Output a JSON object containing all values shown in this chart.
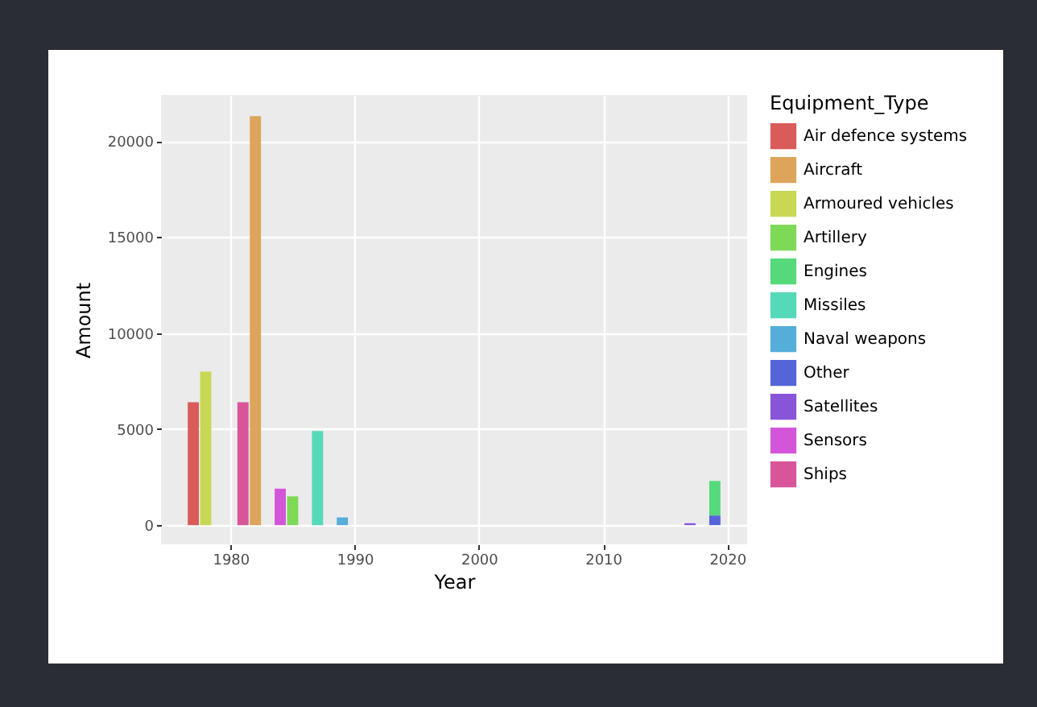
{
  "chart_data": {
    "type": "bar",
    "xlabel": "Year",
    "ylabel": "Amount",
    "legend_title": "Equipment_Type",
    "stacked": true,
    "grid": true,
    "legend": "right",
    "x": [
      1977,
      1978,
      1981,
      1982,
      1984,
      1985,
      1987,
      1989,
      2017,
      2019
    ],
    "xlim": [
      1974.4,
      2021.6
    ],
    "xticks": [
      1980,
      1990,
      2000,
      2010,
      2020
    ],
    "ylim": [
      -1000,
      22400
    ],
    "yticks": [
      0,
      5000,
      10000,
      15000,
      20000
    ],
    "series": [
      {
        "name": "Air defence systems",
        "color": "#d95c5a",
        "values": [
          6400,
          null,
          null,
          null,
          null,
          null,
          null,
          null,
          null,
          null
        ]
      },
      {
        "name": "Aircraft",
        "color": "#dca55a",
        "values": [
          null,
          null,
          null,
          21300,
          null,
          null,
          null,
          null,
          null,
          null
        ]
      },
      {
        "name": "Armoured vehicles",
        "color": "#c8d855",
        "values": [
          null,
          8000,
          null,
          null,
          null,
          null,
          null,
          null,
          null,
          null
        ]
      },
      {
        "name": "Artillery",
        "color": "#7ed957",
        "values": [
          null,
          null,
          null,
          null,
          null,
          1500,
          null,
          null,
          null,
          null
        ]
      },
      {
        "name": "Engines",
        "color": "#55d97a",
        "values": [
          null,
          null,
          null,
          null,
          null,
          null,
          null,
          null,
          null,
          1800
        ]
      },
      {
        "name": "Missiles",
        "color": "#55d9b8",
        "values": [
          null,
          null,
          null,
          null,
          null,
          null,
          4900,
          null,
          null,
          null
        ]
      },
      {
        "name": "Naval weapons",
        "color": "#55add9",
        "values": [
          null,
          null,
          null,
          null,
          null,
          null,
          null,
          400,
          null,
          null
        ]
      },
      {
        "name": "Other",
        "color": "#5565d9",
        "values": [
          null,
          null,
          null,
          null,
          null,
          null,
          null,
          null,
          null,
          500
        ]
      },
      {
        "name": "Satellites",
        "color": "#8855d9",
        "values": [
          null,
          null,
          null,
          null,
          null,
          null,
          null,
          null,
          100,
          null
        ]
      },
      {
        "name": "Sensors",
        "color": "#d355d9",
        "values": [
          null,
          null,
          null,
          null,
          1900,
          null,
          null,
          null,
          null,
          null
        ]
      },
      {
        "name": "Ships",
        "color": "#d9559a",
        "values": [
          null,
          null,
          6400,
          null,
          null,
          null,
          null,
          null,
          null,
          null
        ]
      }
    ]
  }
}
